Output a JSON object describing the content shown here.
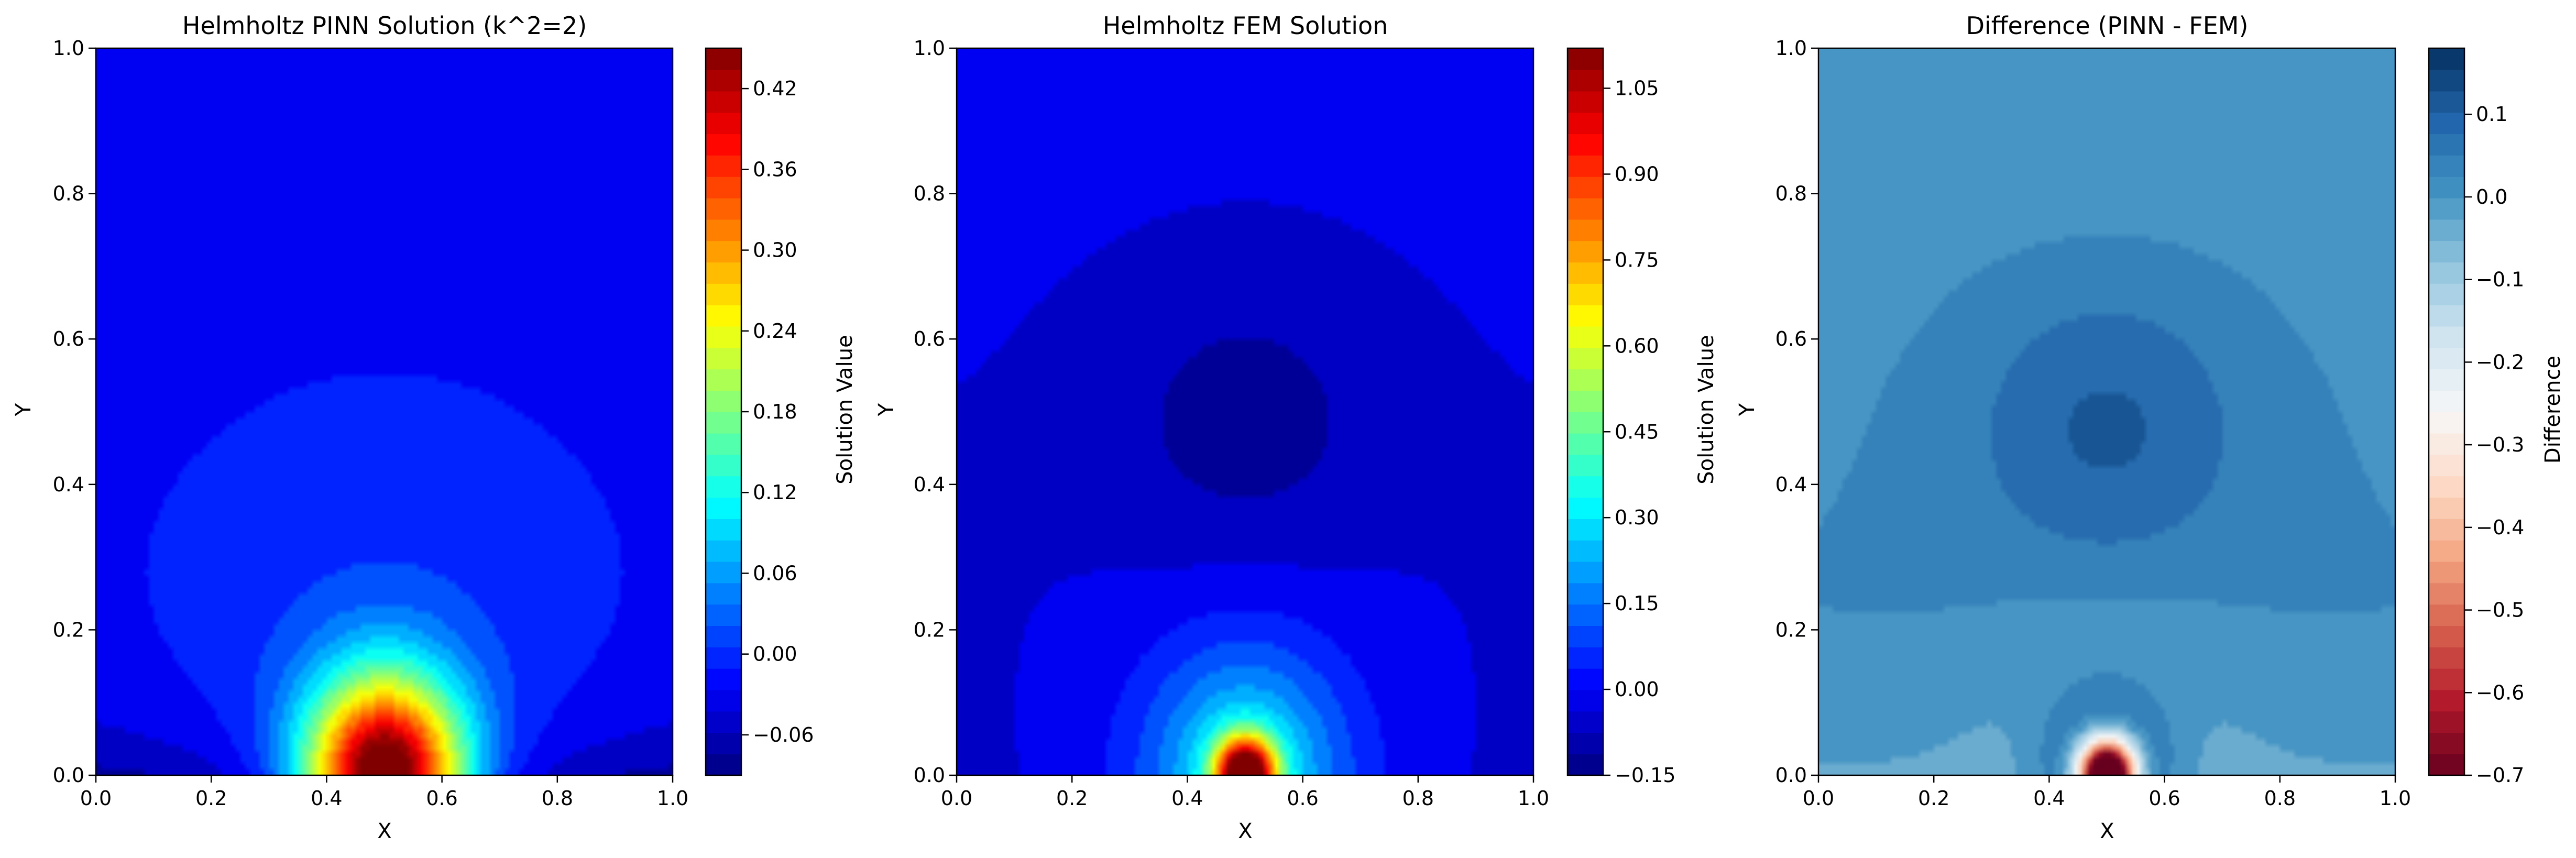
{
  "chart_data": [
    {
      "type": "heatmap",
      "title": "Helmholtz PINN Solution (k^2=2)",
      "xlabel": "X",
      "ylabel": "Y",
      "xlim": [
        0,
        1
      ],
      "ylim": [
        0,
        1
      ],
      "xticks": [
        "0.0",
        "0.2",
        "0.4",
        "0.6",
        "0.8",
        "1.0"
      ],
      "yticks": [
        "0.0",
        "0.2",
        "0.4",
        "0.6",
        "0.8",
        "1.0"
      ],
      "colormap": "jet",
      "colorbar_label": "Solution Value",
      "colorbar_range": [
        -0.09,
        0.45
      ],
      "colorbar_ticks": [
        "−0.06",
        "0.00",
        "0.06",
        "0.12",
        "0.18",
        "0.24",
        "0.30",
        "0.36",
        "0.42"
      ],
      "grid": false,
      "peak": {
        "x": 0.5,
        "y": 0.0,
        "value": 0.45
      },
      "background_value": -0.02
    },
    {
      "type": "heatmap",
      "title": "Helmholtz FEM Solution",
      "xlabel": "X",
      "ylabel": "Y",
      "xlim": [
        0,
        1
      ],
      "ylim": [
        0,
        1
      ],
      "xticks": [
        "0.0",
        "0.2",
        "0.4",
        "0.6",
        "0.8",
        "1.0"
      ],
      "yticks": [
        "0.0",
        "0.2",
        "0.4",
        "0.6",
        "0.8",
        "1.0"
      ],
      "colormap": "jet",
      "colorbar_label": "Solution Value",
      "colorbar_range": [
        -0.15,
        1.12
      ],
      "colorbar_ticks": [
        "−0.15",
        "0.00",
        "0.15",
        "0.30",
        "0.45",
        "0.60",
        "0.75",
        "0.90",
        "1.05"
      ],
      "grid": false,
      "peak": {
        "x": 0.5,
        "y": 0.0,
        "value": 1.1
      },
      "trough": {
        "x": 0.5,
        "y": 0.48,
        "value": -0.14
      }
    },
    {
      "type": "heatmap",
      "title": "Difference (PINN - FEM)",
      "xlabel": "X",
      "ylabel": "Y",
      "xlim": [
        0,
        1
      ],
      "ylim": [
        0,
        1
      ],
      "xticks": [
        "0.0",
        "0.2",
        "0.4",
        "0.6",
        "0.8",
        "1.0"
      ],
      "yticks": [
        "0.0",
        "0.2",
        "0.4",
        "0.6",
        "0.8",
        "1.0"
      ],
      "colormap": "RdBu",
      "colorbar_label": "Difference",
      "colorbar_range": [
        -0.7,
        0.18
      ],
      "colorbar_ticks": [
        "−0.7",
        "−0.6",
        "−0.5",
        "−0.4",
        "−0.3",
        "−0.2",
        "−0.1",
        "0.0",
        "0.1"
      ],
      "grid": false,
      "max": {
        "x": 0.5,
        "y": 0.48,
        "value": 0.17
      },
      "min": {
        "x": 0.5,
        "y": 0.0,
        "value": -0.7
      }
    }
  ]
}
